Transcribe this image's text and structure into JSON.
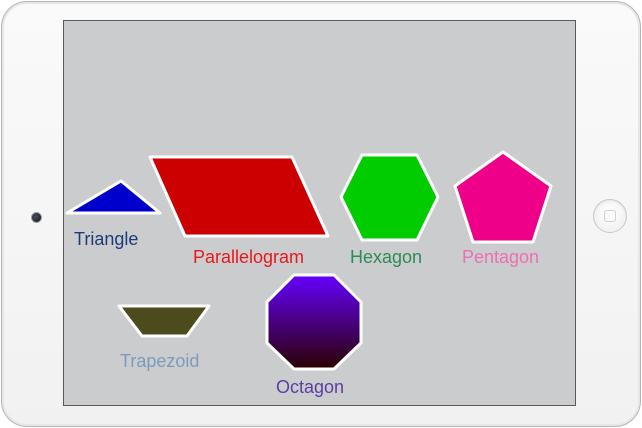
{
  "shapes": {
    "triangle": {
      "label": "Triangle",
      "fill": "#0000cc",
      "label_color": "#1f3a7a"
    },
    "parallelogram": {
      "label": "Parallelogram",
      "fill": "#cc0000",
      "label_color": "#e8191d"
    },
    "hexagon": {
      "label": "Hexagon",
      "fill": "#00cc00",
      "label_color": "#2e8b57"
    },
    "pentagon": {
      "label": "Pentagon",
      "fill": "#ee0088",
      "label_color": "#ee6fb2"
    },
    "trapezoid": {
      "label": "Trapezoid",
      "fill": "#4b4b1d",
      "label_color": "#7d9bbd"
    },
    "octagon": {
      "label": "Octagon",
      "fill_top": "#6600ff",
      "fill_bottom": "#2a0000",
      "label_color": "#5b3fa3"
    }
  },
  "device": {
    "camera_icon": "camera-icon",
    "home_icon": "home-button-icon"
  }
}
